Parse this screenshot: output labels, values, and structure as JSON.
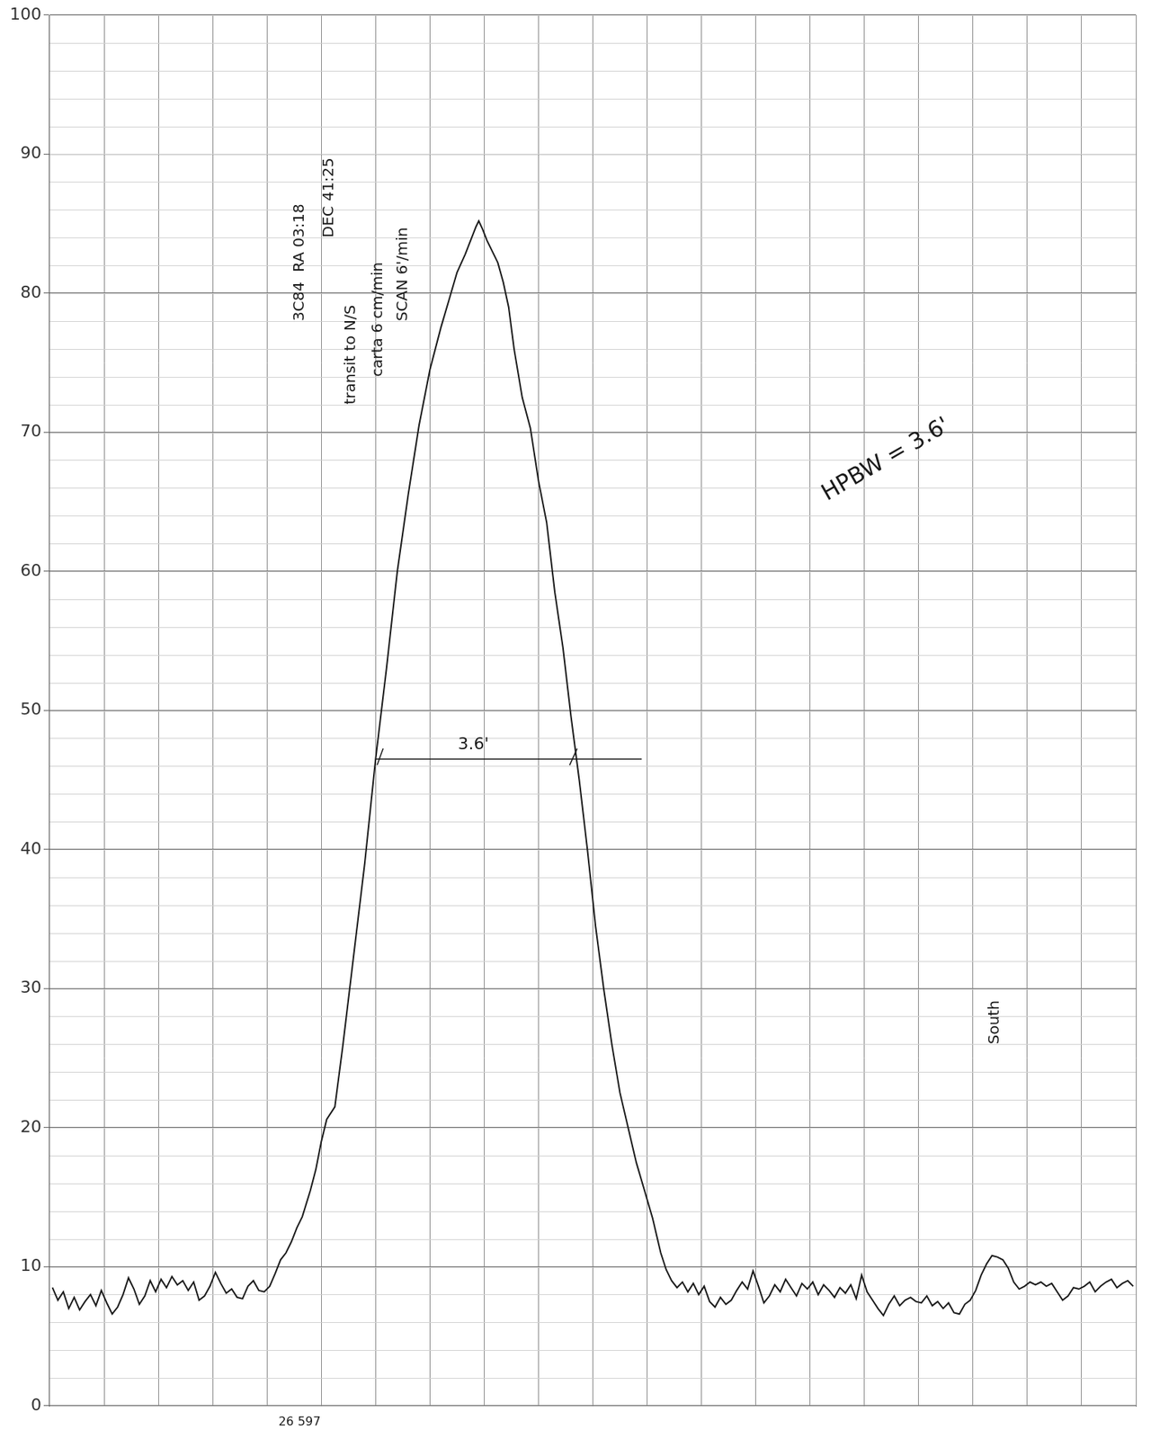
{
  "chart_data": {
    "type": "line",
    "color": "#1a1a1a",
    "grid": true,
    "tick_labels": "y",
    "xlim": [
      0,
      20
    ],
    "xticks": [
      0,
      1,
      2,
      3,
      4,
      5,
      6,
      7,
      8,
      9,
      10,
      11,
      12,
      13,
      14,
      15,
      16,
      17,
      18,
      19,
      20
    ],
    "ylim": [
      0,
      100
    ],
    "yticks": [
      0,
      10,
      20,
      30,
      40,
      50,
      60,
      70,
      80,
      90,
      100
    ],
    "x": [
      0.05,
      0.15,
      0.25,
      0.35,
      0.45,
      0.55,
      0.65,
      0.75,
      0.85,
      0.95,
      1.05,
      1.15,
      1.25,
      1.35,
      1.45,
      1.55,
      1.65,
      1.75,
      1.85,
      1.95,
      2.05,
      2.15,
      2.25,
      2.35,
      2.45,
      2.55,
      2.65,
      2.75,
      2.85,
      2.95,
      3.05,
      3.15,
      3.25,
      3.35,
      3.45,
      3.55,
      3.65,
      3.75,
      3.85,
      3.95,
      4.05,
      4.15,
      4.25,
      4.35,
      4.45,
      4.55,
      4.65,
      4.8,
      4.9,
      5.0,
      5.1,
      5.25,
      5.4,
      5.6,
      5.8,
      6.0,
      6.2,
      6.4,
      6.6,
      6.8,
      7.0,
      7.2,
      7.35,
      7.5,
      7.65,
      7.75,
      7.85,
      7.9,
      7.97,
      8.05,
      8.15,
      8.25,
      8.35,
      8.45,
      8.55,
      8.7,
      8.85,
      9.0,
      9.15,
      9.3,
      9.45,
      9.6,
      9.75,
      9.9,
      10.05,
      10.2,
      10.35,
      10.5,
      10.65,
      10.8,
      10.95,
      11.1,
      11.25,
      11.35,
      11.45,
      11.55,
      11.65,
      11.75,
      11.85,
      11.95,
      12.05,
      12.15,
      12.25,
      12.35,
      12.45,
      12.55,
      12.65,
      12.75,
      12.85,
      12.95,
      13.05,
      13.15,
      13.25,
      13.35,
      13.45,
      13.55,
      13.65,
      13.75,
      13.85,
      13.95,
      14.05,
      14.15,
      14.25,
      14.35,
      14.45,
      14.55,
      14.65,
      14.75,
      14.85,
      14.95,
      15.05,
      15.15,
      15.25,
      15.35,
      15.45,
      15.55,
      15.65,
      15.75,
      15.85,
      15.95,
      16.05,
      16.15,
      16.25,
      16.35,
      16.45,
      16.55,
      16.65,
      16.75,
      16.85,
      16.95,
      17.05,
      17.15,
      17.25,
      17.35,
      17.45,
      17.55,
      17.65,
      17.75,
      17.85,
      17.95,
      18.05,
      18.15,
      18.25,
      18.35,
      18.45,
      18.55,
      18.65,
      18.75,
      18.85,
      18.95,
      19.05,
      19.15,
      19.25,
      19.35,
      19.45,
      19.55,
      19.65,
      19.75,
      19.85,
      19.95
    ],
    "values": [
      8.5,
      7.6,
      8.2,
      7.0,
      7.8,
      6.9,
      7.5,
      8.0,
      7.2,
      8.3,
      7.4,
      6.6,
      7.1,
      8.0,
      9.2,
      8.4,
      7.3,
      7.9,
      9.0,
      8.2,
      9.1,
      8.5,
      9.3,
      8.7,
      9.0,
      8.3,
      8.9,
      7.6,
      7.9,
      8.6,
      9.6,
      8.8,
      8.1,
      8.4,
      7.8,
      7.7,
      8.6,
      9.0,
      8.3,
      8.2,
      8.6,
      9.5,
      10.5,
      11.0,
      11.8,
      12.8,
      13.6,
      15.5,
      17.0,
      19.0,
      20.6,
      21.5,
      26.0,
      32.5,
      39.0,
      46.5,
      53.0,
      60.0,
      65.5,
      70.5,
      74.5,
      77.5,
      79.5,
      81.5,
      82.8,
      83.8,
      84.8,
      85.2,
      84.6,
      83.8,
      83.0,
      82.2,
      80.8,
      79.0,
      76.0,
      72.5,
      70.3,
      66.5,
      63.5,
      58.5,
      54.5,
      49.5,
      45.0,
      40.0,
      34.5,
      30.0,
      26.0,
      22.5,
      20.0,
      17.5,
      15.5,
      13.5,
      11.0,
      9.8,
      9.0,
      8.5,
      8.9,
      8.2,
      8.8,
      8.0,
      8.6,
      7.5,
      7.1,
      7.8,
      7.3,
      7.6,
      8.3,
      8.9,
      8.4,
      9.7,
      8.6,
      7.4,
      7.9,
      8.7,
      8.2,
      9.1,
      8.5,
      7.9,
      8.8,
      8.4,
      8.9,
      8.0,
      8.7,
      8.3,
      7.8,
      8.5,
      8.1,
      8.7,
      7.7,
      9.4,
      8.2,
      7.6,
      7.0,
      6.5,
      7.3,
      7.9,
      7.2,
      7.6,
      7.8,
      7.5,
      7.4,
      7.9,
      7.2,
      7.5,
      7.0,
      7.4,
      6.7,
      6.6,
      7.3,
      7.6,
      8.3,
      9.4,
      10.2,
      10.8,
      10.7,
      10.5,
      9.9,
      8.9,
      8.4,
      8.6,
      8.9,
      8.7,
      8.9,
      8.6,
      8.8,
      8.2,
      7.6,
      7.9,
      8.5,
      8.4,
      8.6,
      8.9,
      8.2,
      8.6,
      8.9,
      9.1,
      8.5,
      8.8,
      9.0,
      8.6
    ],
    "notes": [
      {
        "text": "3C84  RA 03:18",
        "x": 4.6,
        "y": 78
      },
      {
        "text": "DEC 41:25",
        "x": 5.15,
        "y": 84
      },
      {
        "text": "transit to N/S",
        "x": 5.55,
        "y": 72
      },
      {
        "text": "carta 6 cm/min",
        "x": 6.05,
        "y": 74
      },
      {
        "text": "SCAN 6'/min",
        "x": 6.5,
        "y": 78
      },
      {
        "text": "South",
        "x": 17.4,
        "y": 26
      }
    ],
    "annotations": [
      {
        "text": "HPBW = 3.6'",
        "x": 15.4,
        "y": 68
      }
    ],
    "hpbw_line": {
      "y": 46.5,
      "x": [
        6.0,
        10.9
      ],
      "label": "3.6'"
    },
    "footer": "26 597"
  }
}
